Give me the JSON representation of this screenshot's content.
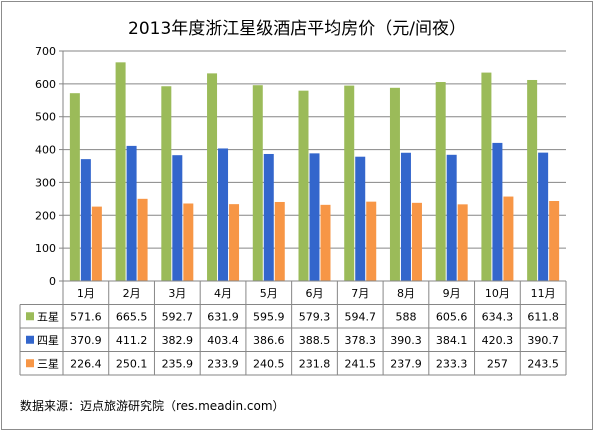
{
  "chart_data": {
    "type": "bar",
    "title": "2013年度浙江星级酒店平均房价（元/间夜）",
    "categories": [
      "1月",
      "2月",
      "3月",
      "4月",
      "5月",
      "6月",
      "7月",
      "8月",
      "9月",
      "10月",
      "11月"
    ],
    "series": [
      {
        "name": "五星",
        "color": "#9bbb59",
        "values": [
          571.6,
          665.5,
          592.7,
          631.9,
          595.9,
          579.3,
          594.7,
          588,
          605.6,
          634.3,
          611.8
        ],
        "labels": [
          "571.6",
          "665.5",
          "592.7",
          "631.9",
          "595.9",
          "579.3",
          "594.7",
          "588",
          "605.6",
          "634.3",
          "611.8"
        ]
      },
      {
        "name": "四星",
        "color": "#3366cc",
        "values": [
          370.9,
          411.2,
          382.9,
          403.4,
          386.6,
          388.5,
          378.3,
          390.3,
          384.1,
          420.3,
          390.7
        ],
        "labels": [
          "370.9",
          "411.2",
          "382.9",
          "403.4",
          "386.6",
          "388.5",
          "378.3",
          "390.3",
          "384.1",
          "420.3",
          "390.7"
        ]
      },
      {
        "name": "三星",
        "color": "#f79646",
        "values": [
          226.4,
          250.1,
          235.9,
          233.9,
          240.5,
          231.8,
          241.5,
          237.9,
          233.3,
          257,
          243.5
        ],
        "labels": [
          "226.4",
          "250.1",
          "235.9",
          "233.9",
          "240.5",
          "231.8",
          "241.5",
          "237.9",
          "233.3",
          "257",
          "243.5"
        ]
      }
    ],
    "yticks": [
      "0",
      "100",
      "200",
      "300",
      "400",
      "500",
      "600",
      "700"
    ],
    "ylim": [
      0,
      700
    ],
    "grid": true,
    "legend": "data-table"
  },
  "source_text": "数据来源：迈点旅游研究院（res.meadin.com）"
}
